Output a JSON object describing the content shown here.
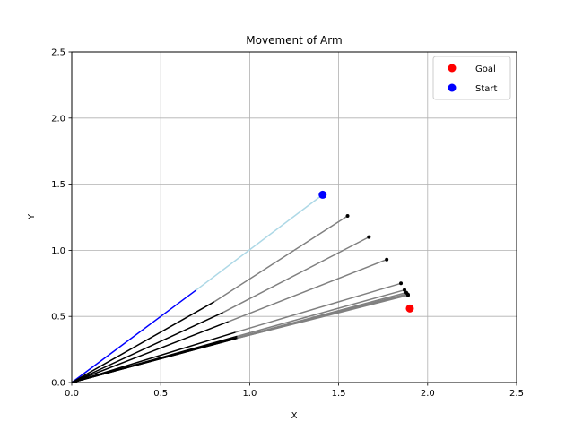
{
  "chart_data": {
    "type": "line",
    "title": "Movement of Arm",
    "xlabel": "X",
    "ylabel": "Y",
    "xlim": [
      0.0,
      2.5
    ],
    "ylim": [
      0.0,
      2.5
    ],
    "xticks": [
      "0.0",
      "0.5",
      "1.0",
      "1.5",
      "2.0",
      "2.5"
    ],
    "yticks": [
      "0.0",
      "0.5",
      "1.0",
      "1.5",
      "2.0",
      "2.5"
    ],
    "xtick_values": [
      0.0,
      0.5,
      1.0,
      1.5,
      2.0,
      2.5
    ],
    "ytick_values": [
      0.0,
      0.5,
      1.0,
      1.5,
      2.0,
      2.5
    ],
    "grid": true,
    "legend_position": "top-right",
    "legend": [
      {
        "label": "Goal",
        "color": "#ff0000"
      },
      {
        "label": "Start",
        "color": "#0000ff"
      }
    ],
    "colors": {
      "link1_start": "#0000ff",
      "link2_start": "#add8e6",
      "link1": "#000000",
      "link2": "#808080",
      "tip": "#000000"
    },
    "goal": {
      "x": 1.9,
      "y": 0.56
    },
    "start": {
      "x": 1.41,
      "y": 1.42
    },
    "arm_poses": [
      {
        "elbow": [
          0.7,
          0.7
        ],
        "tip": [
          1.41,
          1.42
        ]
      },
      {
        "elbow": [
          0.8,
          0.61
        ],
        "tip": [
          1.55,
          1.26
        ]
      },
      {
        "elbow": [
          0.85,
          0.53
        ],
        "tip": [
          1.67,
          1.1
        ]
      },
      {
        "elbow": [
          0.88,
          0.46
        ],
        "tip": [
          1.77,
          0.93
        ]
      },
      {
        "elbow": [
          0.92,
          0.38
        ],
        "tip": [
          1.85,
          0.75
        ]
      },
      {
        "elbow": [
          0.93,
          0.35
        ],
        "tip": [
          1.87,
          0.7
        ]
      },
      {
        "elbow": [
          0.93,
          0.34
        ],
        "tip": [
          1.88,
          0.68
        ]
      },
      {
        "elbow": [
          0.93,
          0.34
        ],
        "tip": [
          1.885,
          0.67
        ]
      },
      {
        "elbow": [
          0.93,
          0.335
        ],
        "tip": [
          1.89,
          0.665
        ]
      },
      {
        "elbow": [
          0.93,
          0.335
        ],
        "tip": [
          1.89,
          0.66
        ]
      }
    ]
  }
}
